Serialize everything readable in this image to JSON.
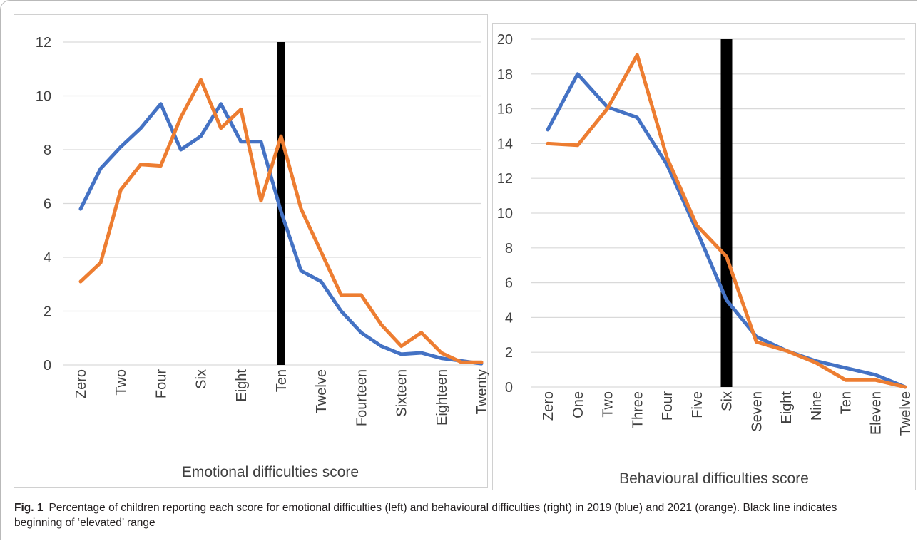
{
  "figure": {
    "caption_label": "Fig. 1",
    "caption_text": "Percentage of children reporting each score for emotional difficulties (left) and behavioural difficulties (right) in 2019 (blue) and 2021 (orange). Black line indicates beginning of ‘elevated’ range"
  },
  "colors": {
    "series_2019": "#4472c4",
    "series_2021": "#ed7d31",
    "elevated_marker": "#000000",
    "gridline": "#d9d9d9",
    "tick_text": "#404040"
  },
  "chart_data": [
    {
      "type": "line",
      "xlabel": "Emotional difficulties score",
      "ylabel": "",
      "ylim": [
        0,
        12
      ],
      "yticks": [
        "0",
        "2",
        "4",
        "6",
        "8",
        "10",
        "12"
      ],
      "grid": true,
      "categories": [
        "Zero",
        "One",
        "Two",
        "Three",
        "Four",
        "Five",
        "Six",
        "Seven",
        "Eight",
        "Nine",
        "Ten",
        "Eleven",
        "Twelve",
        "Thirteen",
        "Fourteen",
        "Fifteen",
        "Sixteen",
        "Seventeen",
        "Eighteen",
        "Nineteen",
        "Twenty"
      ],
      "shown_tick_labels": [
        "Zero",
        "Two",
        "Four",
        "Six",
        "Eight",
        "Ten",
        "Twelve",
        "Fourteen",
        "Sixteen",
        "Eighteen",
        "Twenty"
      ],
      "elevated_marker_category": "Ten",
      "series": [
        {
          "values": [
            5.8,
            7.3,
            8.1,
            8.8,
            9.7,
            8.0,
            8.5,
            9.7,
            8.3,
            8.3,
            5.7,
            3.5,
            3.1,
            2.0,
            1.2,
            0.7,
            0.4,
            0.45,
            0.25,
            0.15,
            0.05
          ]
        },
        {
          "values": [
            3.1,
            3.8,
            6.5,
            7.45,
            7.4,
            9.2,
            10.6,
            8.8,
            9.5,
            6.1,
            8.5,
            5.8,
            4.2,
            2.6,
            2.6,
            1.5,
            0.7,
            1.2,
            0.45,
            0.1,
            0.1
          ]
        }
      ]
    },
    {
      "type": "line",
      "xlabel": "Behavioural difficulties score",
      "ylabel": "",
      "ylim": [
        0,
        20
      ],
      "yticks": [
        "0",
        "2",
        "4",
        "6",
        "8",
        "10",
        "12",
        "14",
        "16",
        "18",
        "20"
      ],
      "grid": true,
      "categories": [
        "Zero",
        "One",
        "Two",
        "Three",
        "Four",
        "Five",
        "Six",
        "Seven",
        "Eight",
        "Nine",
        "Ten",
        "Eleven",
        "Twelve"
      ],
      "shown_tick_labels": [
        "Zero",
        "One",
        "Two",
        "Three",
        "Four",
        "Five",
        "Six",
        "Seven",
        "Eight",
        "Nine",
        "Ten",
        "Eleven",
        "Twelve"
      ],
      "elevated_marker_category": "Six",
      "series": [
        {
          "values": [
            14.8,
            18.0,
            16.1,
            15.5,
            12.8,
            9.0,
            5.0,
            2.9,
            2.1,
            1.5,
            1.1,
            0.7,
            0.0
          ]
        },
        {
          "values": [
            14.0,
            13.9,
            16.0,
            19.1,
            13.2,
            9.3,
            7.5,
            2.6,
            2.1,
            1.4,
            0.4,
            0.4,
            0.0
          ]
        }
      ]
    }
  ]
}
